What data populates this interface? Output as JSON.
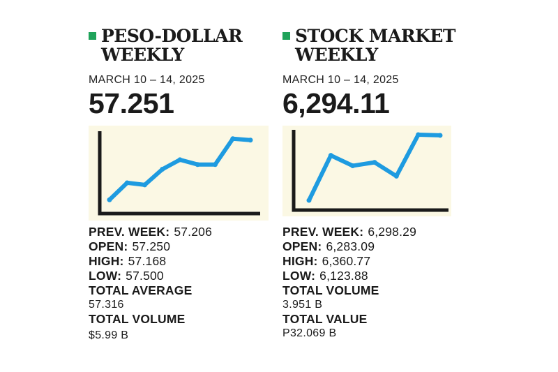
{
  "colors": {
    "accent_bullet": "#1fa35a",
    "line": "#1e9be0",
    "chart_bg": "#fbf8e4",
    "axis": "#1a1a1a"
  },
  "peso": {
    "title_line1": "PESO-DOLLAR",
    "title_line2": "WEEKLY",
    "date": "MARCH 10 – 14, 2025",
    "big_value": "57.251",
    "stats": [
      {
        "label": "PREV. WEEK:",
        "value": "57.206"
      },
      {
        "label": "OPEN:",
        "value": "57.250"
      },
      {
        "label": "HIGH:",
        "value": "57.168"
      },
      {
        "label": "LOW:",
        "value": "57.500"
      }
    ],
    "total_average_label": "TOTAL AVERAGE",
    "total_average_value": "57.316",
    "total_volume_label": "TOTAL VOLUME",
    "total_volume_value": "$5.99 B"
  },
  "stock": {
    "title_line1": "STOCK MARKET",
    "title_line2": "WEEKLY",
    "date": "MARCH 10 – 14, 2025",
    "big_value": "6,294.11",
    "stats": [
      {
        "label": "PREV. WEEK:",
        "value": "6,298.29"
      },
      {
        "label": "OPEN:",
        "value": "6,283.09"
      },
      {
        "label": "HIGH:",
        "value": "6,360.77"
      },
      {
        "label": "LOW:",
        "value": "6,123.88"
      }
    ],
    "total_volume_label": "TOTAL VOLUME",
    "total_volume_value": "3.951 B",
    "total_value_label": "TOTAL VALUE",
    "total_value_value": "P32.069 B"
  },
  "chart_data": [
    {
      "type": "line",
      "title": "PESO-DOLLAR WEEKLY",
      "x": [
        0,
        1,
        2,
        3,
        4,
        5,
        6,
        7,
        8
      ],
      "values": [
        8,
        33,
        30,
        53,
        67,
        60,
        60,
        98,
        96
      ],
      "ylim": [
        0,
        105
      ],
      "xlabel": "",
      "ylabel": "",
      "grid": false
    },
    {
      "type": "line",
      "title": "STOCK MARKET WEEKLY",
      "x": [
        0,
        1,
        2,
        3,
        4,
        5,
        6
      ],
      "values": [
        5,
        70,
        55,
        60,
        40,
        100,
        99
      ],
      "ylim": [
        0,
        105
      ],
      "xlabel": "",
      "ylabel": "",
      "grid": false
    }
  ]
}
